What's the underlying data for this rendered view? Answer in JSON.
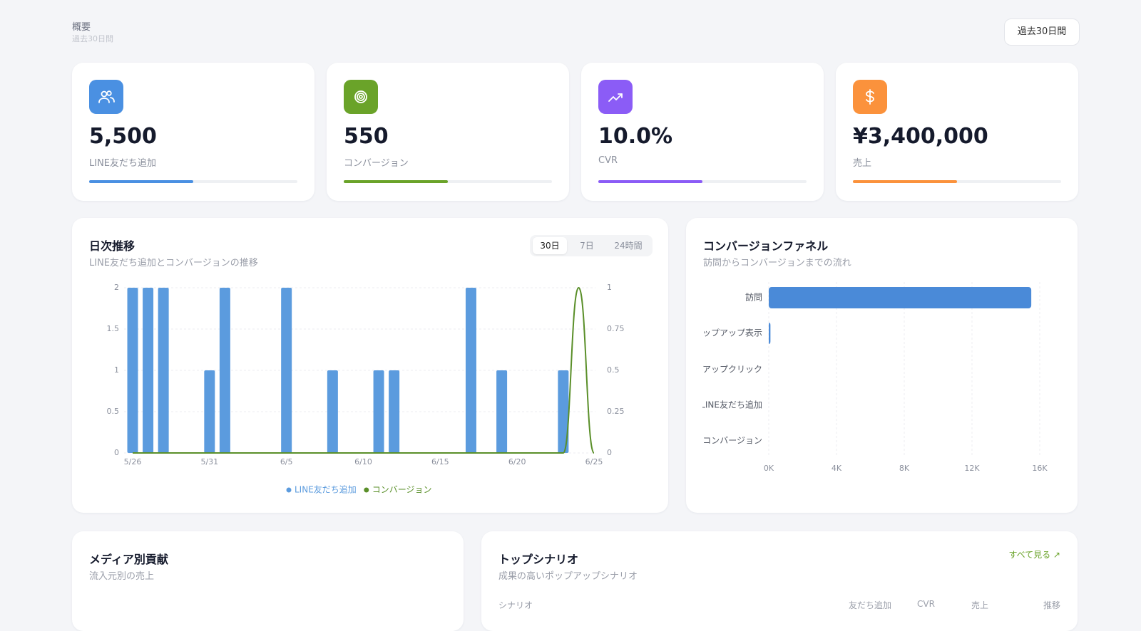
{
  "header": {
    "title": "概要",
    "subtitle": "過去30日間",
    "range_button": "過去30日間"
  },
  "kpis": [
    {
      "value": "5,500",
      "label": "LINE友だち追加",
      "color": "#4a90e2",
      "progress": 50
    },
    {
      "value": "550",
      "label": "コンバージョン",
      "color": "#6aa329",
      "progress": 50
    },
    {
      "value": "10.0%",
      "label": "CVR",
      "color": "#8b5cf6",
      "progress": 50
    },
    {
      "value": "¥3,400,000",
      "label": "売上",
      "color": "#fb923c",
      "progress": 50
    }
  ],
  "tabs": [
    "30日",
    "7日",
    "24時間"
  ],
  "chart_data": [
    {
      "type": "bar_line",
      "title": "日次推移",
      "subtitle": "LINE友だち追加とコンバージョンの推移",
      "categories": [
        "5/26",
        null,
        null,
        null,
        null,
        "5/31",
        null,
        null,
        null,
        null,
        "6/5",
        null,
        null,
        null,
        null,
        "6/10",
        null,
        null,
        null,
        null,
        "6/15",
        null,
        null,
        null,
        null,
        "6/20",
        null,
        null,
        null,
        null,
        "6/25"
      ],
      "series": [
        {
          "name": "LINE友だち追加",
          "color": "#5b9bde",
          "values": [
            2,
            2,
            2,
            0,
            0,
            1,
            2,
            0,
            0,
            0,
            2,
            0,
            0,
            1,
            0,
            0,
            1,
            1,
            0,
            0,
            0,
            0,
            2,
            0,
            1,
            0,
            0,
            0,
            1,
            0,
            0
          ]
        },
        {
          "name": "コンバージョン",
          "color": "#5a8f29",
          "axis": "y2",
          "values": [
            0,
            0,
            0,
            0,
            0,
            0,
            0,
            0,
            0,
            0,
            0,
            0,
            0,
            0,
            0,
            0,
            0,
            0,
            0,
            0,
            0,
            0,
            0,
            0,
            0,
            0,
            0,
            0,
            0,
            1,
            0
          ]
        }
      ],
      "ylim": [
        0,
        2
      ],
      "yticks": [
        0,
        0.5,
        1,
        1.5,
        2
      ],
      "y2lim": [
        0,
        1
      ],
      "y2ticks": [
        0,
        0.25,
        0.5,
        0.75,
        1
      ],
      "grid": true,
      "legend": "bottom"
    },
    {
      "type": "hbar",
      "title": "コンバージョンファネル",
      "subtitle": "訪問からコンバージョンまでの流れ",
      "categories": [
        "訪問",
        "ポップアップ表示",
        "ポップアップクリック",
        "LINE友だち追加",
        "コンバージョン"
      ],
      "values": [
        15500,
        100,
        0,
        0,
        0
      ],
      "color": "#4a8ad8",
      "xlim": [
        0,
        16000
      ],
      "xticks": [
        {
          "value": 0,
          "label": "0K"
        },
        {
          "value": 4000,
          "label": "4K"
        },
        {
          "value": 8000,
          "label": "8K"
        },
        {
          "value": 12000,
          "label": "12K"
        },
        {
          "value": 16000,
          "label": "16K"
        }
      ],
      "grid": true
    }
  ],
  "media": {
    "title": "メディア別貢献",
    "subtitle": "流入元別の売上"
  },
  "scenarios": {
    "title": "トップシナリオ",
    "subtitle": "成果の高いポップアップシナリオ",
    "link": "すべて見る ↗",
    "columns": [
      "シナリオ",
      "友だち追加",
      "CVR",
      "売上",
      "推移"
    ]
  }
}
